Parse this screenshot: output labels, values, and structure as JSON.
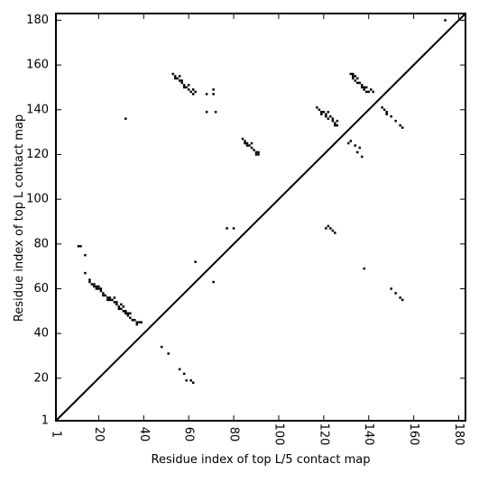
{
  "chart_data": {
    "type": "scatter",
    "title": "",
    "xlabel": "Residue index of top L/5 contact map",
    "ylabel": "Residue index of top L contact map",
    "xlim": [
      1,
      183
    ],
    "ylim": [
      1,
      183
    ],
    "xticks": [
      1,
      20,
      40,
      60,
      80,
      100,
      120,
      140,
      160,
      180
    ],
    "yticks": [
      1,
      20,
      40,
      60,
      80,
      100,
      120,
      140,
      160,
      180
    ],
    "diagonal": [
      [
        1,
        1
      ],
      [
        183,
        183
      ]
    ],
    "grid": false,
    "legend": "none",
    "colors": {
      "points": "#000000",
      "axes": "#000000",
      "background": "#ffffff"
    },
    "series": [
      {
        "values": [
          [
            11,
            79
          ],
          [
            12,
            79
          ],
          [
            14,
            75
          ],
          [
            14,
            67
          ],
          [
            16,
            64
          ],
          [
            16,
            63
          ],
          [
            17,
            62
          ],
          [
            18,
            62
          ],
          [
            18,
            61
          ],
          [
            19,
            61
          ],
          [
            19,
            60
          ],
          [
            20,
            61
          ],
          [
            20,
            60
          ],
          [
            21,
            60
          ],
          [
            21,
            59
          ],
          [
            22,
            58
          ],
          [
            22,
            57
          ],
          [
            23,
            57
          ],
          [
            24,
            56
          ],
          [
            24,
            55
          ],
          [
            25,
            56
          ],
          [
            25,
            55
          ],
          [
            26,
            55
          ],
          [
            27,
            56
          ],
          [
            27,
            54
          ],
          [
            28,
            54
          ],
          [
            28,
            53
          ],
          [
            29,
            52
          ],
          [
            29,
            51
          ],
          [
            30,
            53
          ],
          [
            30,
            51
          ],
          [
            31,
            52
          ],
          [
            31,
            50
          ],
          [
            32,
            50
          ],
          [
            32,
            49
          ],
          [
            33,
            49
          ],
          [
            33,
            48
          ],
          [
            34,
            49
          ],
          [
            34,
            47
          ],
          [
            35,
            46
          ],
          [
            36,
            46
          ],
          [
            37,
            45
          ],
          [
            37,
            44
          ],
          [
            38,
            45
          ],
          [
            39,
            45
          ],
          [
            32,
            136
          ],
          [
            48,
            34
          ],
          [
            51,
            31
          ],
          [
            56,
            24
          ],
          [
            58,
            22
          ],
          [
            59,
            19
          ],
          [
            61,
            19
          ],
          [
            62,
            18
          ],
          [
            53,
            156
          ],
          [
            54,
            155
          ],
          [
            54,
            154
          ],
          [
            55,
            154
          ],
          [
            56,
            155
          ],
          [
            56,
            153
          ],
          [
            57,
            153
          ],
          [
            57,
            152
          ],
          [
            58,
            151
          ],
          [
            58,
            150
          ],
          [
            59,
            150
          ],
          [
            60,
            151
          ],
          [
            60,
            149
          ],
          [
            61,
            148
          ],
          [
            62,
            149
          ],
          [
            62,
            147
          ],
          [
            63,
            148
          ],
          [
            63,
            72
          ],
          [
            68,
            147
          ],
          [
            68,
            139
          ],
          [
            71,
            149
          ],
          [
            71,
            147
          ],
          [
            72,
            139
          ],
          [
            71,
            63
          ],
          [
            77,
            87
          ],
          [
            80,
            87
          ],
          [
            84,
            127
          ],
          [
            85,
            126
          ],
          [
            85,
            125
          ],
          [
            86,
            125
          ],
          [
            86,
            124
          ],
          [
            87,
            124
          ],
          [
            88,
            125
          ],
          [
            88,
            123
          ],
          [
            89,
            122
          ],
          [
            90,
            121
          ],
          [
            90,
            120
          ],
          [
            91,
            121
          ],
          [
            91,
            120
          ],
          [
            117,
            141
          ],
          [
            118,
            140
          ],
          [
            119,
            139
          ],
          [
            119,
            138
          ],
          [
            120,
            139
          ],
          [
            121,
            138
          ],
          [
            121,
            137
          ],
          [
            122,
            139
          ],
          [
            122,
            136
          ],
          [
            123,
            137
          ],
          [
            124,
            136
          ],
          [
            124,
            135
          ],
          [
            125,
            134
          ],
          [
            125,
            133
          ],
          [
            126,
            135
          ],
          [
            126,
            133
          ],
          [
            121,
            87
          ],
          [
            122,
            88
          ],
          [
            123,
            87
          ],
          [
            124,
            86
          ],
          [
            125,
            85
          ],
          [
            131,
            125
          ],
          [
            132,
            126
          ],
          [
            132,
            156
          ],
          [
            133,
            156
          ],
          [
            133,
            155
          ],
          [
            133,
            154
          ],
          [
            134,
            155
          ],
          [
            134,
            153
          ],
          [
            134,
            124
          ],
          [
            135,
            154
          ],
          [
            135,
            152
          ],
          [
            135,
            121
          ],
          [
            136,
            123
          ],
          [
            136,
            152
          ],
          [
            137,
            151
          ],
          [
            137,
            150
          ],
          [
            137,
            119
          ],
          [
            138,
            150
          ],
          [
            138,
            149
          ],
          [
            139,
            150
          ],
          [
            139,
            148
          ],
          [
            140,
            148
          ],
          [
            141,
            149
          ],
          [
            142,
            148
          ],
          [
            138,
            69
          ],
          [
            146,
            141
          ],
          [
            147,
            140
          ],
          [
            148,
            139
          ],
          [
            148,
            138
          ],
          [
            150,
            137
          ],
          [
            152,
            135
          ],
          [
            154,
            133
          ],
          [
            155,
            132
          ],
          [
            150,
            60
          ],
          [
            152,
            58
          ],
          [
            154,
            56
          ],
          [
            155,
            55
          ],
          [
            174,
            180
          ]
        ]
      }
    ]
  }
}
